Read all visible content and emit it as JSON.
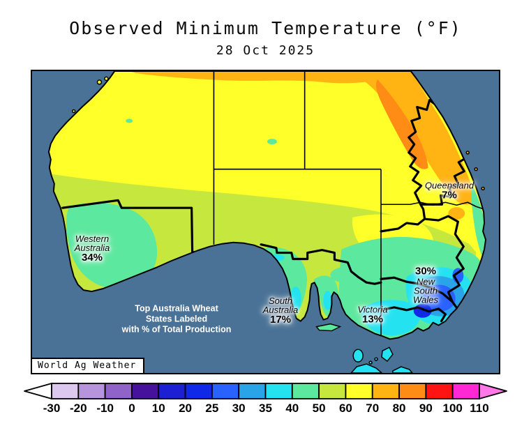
{
  "title": "Observed Minimum Temperature (°F)",
  "subtitle": "28 Oct 2025",
  "map": {
    "ocean_color": "#4a7296",
    "watermark": "World Ag Weather",
    "note": {
      "line1": "Top Australia Wheat",
      "line2": "States Labeled",
      "line3": "with % of Total Production"
    },
    "labels": {
      "wa": {
        "line1": "Western",
        "line2": "Australia",
        "pct": "34%"
      },
      "sa": {
        "line1": "South",
        "line2": "Australia",
        "pct": "17%"
      },
      "vic": {
        "line1": "Victoria",
        "pct": "13%"
      },
      "nsw": {
        "pct": "30%",
        "line1": "New",
        "line2": "South",
        "line3": "Wales"
      },
      "qld": {
        "line1": "Queensland",
        "pct": "7%"
      }
    }
  },
  "colorbar": {
    "ticks": [
      "-30",
      "-20",
      "-10",
      "0",
      "10",
      "20",
      "25",
      "30",
      "35",
      "40",
      "50",
      "60",
      "70",
      "80",
      "90",
      "100",
      "110"
    ],
    "segment_colors": [
      "#dcc8ee",
      "#b795dc",
      "#8f63c8",
      "#47129b",
      "#1c1fd2",
      "#1028e8",
      "#2962ff",
      "#29a4e8",
      "#25e2f0",
      "#5ce89e",
      "#c6e83e",
      "#ffff29",
      "#ffb414",
      "#ff8c14",
      "#ff1414",
      "#ff28d4"
    ],
    "left_arrow_color": "#ffffff",
    "right_arrow_color": "#ff78e8"
  }
}
